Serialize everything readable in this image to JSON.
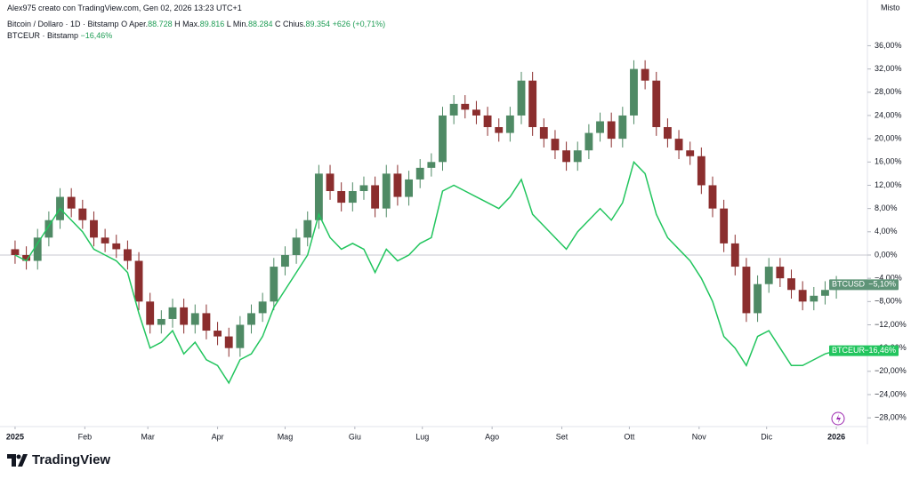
{
  "header": {
    "credit": "Alex975 creato con TradingView.com, Gen 02, 2026 13:23 UTC+1",
    "symbol": "Bitcoin / Dollaro · 1D · Bitstamp",
    "ohlc": [
      {
        "key": "O",
        "label": "Aper.",
        "value": "88.728"
      },
      {
        "key": "H",
        "label": "Max.",
        "value": "89.816"
      },
      {
        "key": "L",
        "label": "Min.",
        "value": "88.284"
      },
      {
        "key": "C",
        "label": "Chius.",
        "value": "89.354"
      }
    ],
    "change": "+626 (+0,71%)",
    "compare": "BTCEUR · Bitstamp",
    "compare_change": "−16,46%",
    "scale_mode": "Misto"
  },
  "logo": "TradingView",
  "chart_data": {
    "type": "candlestick",
    "x": [
      0,
      5,
      10,
      15,
      20,
      25,
      30,
      35,
      40,
      45,
      50,
      55,
      60,
      65,
      70,
      75,
      80,
      85,
      90,
      95,
      100,
      105,
      110,
      115,
      120,
      125,
      130,
      135,
      140,
      145,
      150,
      155,
      160,
      165,
      170,
      175,
      180,
      185,
      190,
      195,
      200,
      205,
      210,
      215,
      220,
      225,
      230,
      235,
      240,
      245,
      250,
      255,
      260,
      265,
      270,
      275,
      280,
      285,
      290,
      295,
      300,
      305,
      310,
      315,
      320,
      325,
      330,
      335,
      340,
      345,
      350,
      355,
      360,
      365
    ],
    "xlim": [
      -6.7,
      378.8
    ],
    "xticks": [
      {
        "value": 0,
        "label": "2025"
      },
      {
        "value": 31,
        "label": "Feb"
      },
      {
        "value": 59,
        "label": "Mar"
      },
      {
        "value": 90,
        "label": "Apr"
      },
      {
        "value": 120,
        "label": "Mag"
      },
      {
        "value": 151,
        "label": "Giu"
      },
      {
        "value": 181,
        "label": "Lug"
      },
      {
        "value": 212,
        "label": "Ago"
      },
      {
        "value": 243,
        "label": "Set"
      },
      {
        "value": 273,
        "label": "Ott"
      },
      {
        "value": 304,
        "label": "Nov"
      },
      {
        "value": 334,
        "label": "Dic"
      },
      {
        "value": 365,
        "label": "2026"
      }
    ],
    "ylim": [
      -29.5,
      40.5
    ],
    "yticks": [
      {
        "value": 36,
        "label": "36,00%"
      },
      {
        "value": 32,
        "label": "32,00%"
      },
      {
        "value": 28,
        "label": "28,00%"
      },
      {
        "value": 24,
        "label": "24,00%"
      },
      {
        "value": 20,
        "label": "20,00%"
      },
      {
        "value": 16,
        "label": "16,00%"
      },
      {
        "value": 12,
        "label": "12,00%"
      },
      {
        "value": 8,
        "label": "8,00%"
      },
      {
        "value": 4,
        "label": "4,00%"
      },
      {
        "value": 0,
        "label": "0,00%"
      },
      {
        "value": -4,
        "label": "−4,00%"
      },
      {
        "value": -8,
        "label": "−8,00%"
      },
      {
        "value": -12,
        "label": "−12,00%"
      },
      {
        "value": -16,
        "label": "−16,00%"
      },
      {
        "value": -20,
        "label": "−20,00%"
      },
      {
        "value": -24,
        "label": "−24,00%"
      },
      {
        "value": -28,
        "label": "−28,00%"
      }
    ],
    "grid": false,
    "zero_line": true,
    "series": [
      {
        "name": "BTCUSD",
        "kind": "candles",
        "up_color": "#4f8a65",
        "down_color": "#8b2e2e",
        "badge_color": "#5f9478",
        "badge": "−5,10%",
        "open": [
          1,
          0,
          -1,
          3,
          6,
          10,
          8,
          6,
          3,
          2,
          1,
          -1,
          -8,
          -12,
          -11,
          -9,
          -12,
          -10,
          -13,
          -14,
          -16,
          -12,
          -10,
          -8,
          -2,
          0,
          3,
          6,
          14,
          11,
          9,
          11,
          12,
          8,
          14,
          10,
          13,
          15,
          16,
          24,
          26,
          25,
          24,
          22,
          21,
          24,
          30,
          22,
          20,
          18,
          16,
          18,
          21,
          23,
          20,
          24,
          32,
          30,
          22,
          20,
          18,
          17,
          12,
          8,
          2,
          -2,
          -10,
          -5,
          -2,
          -4,
          -6,
          -8,
          -7,
          -6
        ],
        "high": [
          2.5,
          1.5,
          4.5,
          7.5,
          11.5,
          11.5,
          9.5,
          7.5,
          4.5,
          3.5,
          2.5,
          0.5,
          -6.5,
          -9.5,
          -7.5,
          -7.5,
          -8.5,
          -8.5,
          -11.5,
          -12.5,
          -10.5,
          -8.5,
          -6.5,
          -0.5,
          1.5,
          4.5,
          7.5,
          15.5,
          15.5,
          12.5,
          12.5,
          13.5,
          13.5,
          15.5,
          15.5,
          14.5,
          16.5,
          17.5,
          25.5,
          27.5,
          27.5,
          26.5,
          25.5,
          23.5,
          25.5,
          31.5,
          31.5,
          23.5,
          21.5,
          19.5,
          19.5,
          22.5,
          24.5,
          24.5,
          25.5,
          33.5,
          33.5,
          31.5,
          23.5,
          21.5,
          19.5,
          18.5,
          13.5,
          9.5,
          3.5,
          -0.5,
          -3.5,
          -0.5,
          -0.5,
          -2.5,
          -4.5,
          -5.5,
          -4.5,
          -3.6
        ],
        "low": [
          -1.5,
          -2.5,
          -2.5,
          1.5,
          4.5,
          6.5,
          4.5,
          1.5,
          0.5,
          -0.5,
          -2.5,
          -9.5,
          -13.5,
          -13.5,
          -12.5,
          -13.5,
          -13.5,
          -14.5,
          -15.5,
          -17.5,
          -17.5,
          -13.5,
          -11.5,
          -9.5,
          -3.5,
          -1.5,
          1.5,
          4.5,
          9.5,
          7.5,
          7.5,
          9.5,
          6.5,
          6.5,
          8.5,
          8.5,
          11.5,
          13.5,
          14.5,
          22.5,
          23.5,
          22.5,
          20.5,
          19.5,
          19.5,
          22.5,
          20.5,
          18.5,
          16.5,
          14.5,
          14.5,
          16.5,
          19.5,
          18.5,
          18.5,
          22.5,
          28.5,
          20.5,
          18.5,
          16.5,
          15.5,
          10.5,
          6.5,
          0.5,
          -3.5,
          -11.5,
          -11.5,
          -6.5,
          -5.5,
          -7.5,
          -9.5,
          -9.5,
          -8.5,
          -7.5
        ],
        "close": [
          0,
          -1,
          3,
          6,
          10,
          8,
          6,
          3,
          2,
          1,
          -1,
          -8,
          -12,
          -11,
          -9,
          -12,
          -10,
          -13,
          -14,
          -16,
          -12,
          -10,
          -8,
          -2,
          0,
          3,
          6,
          14,
          11,
          9,
          11,
          12,
          8,
          14,
          10,
          13,
          15,
          16,
          24,
          26,
          25,
          24,
          22,
          21,
          24,
          30,
          22,
          20,
          18,
          16,
          18,
          21,
          23,
          20,
          24,
          32,
          30,
          22,
          20,
          18,
          17,
          12,
          8,
          2,
          -2,
          -10,
          -5,
          -2,
          -4,
          -6,
          -8,
          -7,
          -6,
          -5.1
        ]
      },
      {
        "name": "BTCEUR",
        "kind": "line",
        "color": "#22c55e",
        "badge_color": "#22c55e",
        "badge": "−16,46%",
        "values": [
          0,
          -1,
          2,
          5,
          8,
          6,
          4,
          1,
          0,
          -1,
          -3,
          -10,
          -16,
          -15,
          -13,
          -17,
          -15,
          -18,
          -19,
          -22,
          -18,
          -17,
          -14,
          -9,
          -6,
          -3,
          0,
          7,
          3,
          1,
          2,
          1,
          -3,
          1,
          -1,
          0,
          2,
          3,
          11,
          12,
          11,
          10,
          9,
          8,
          10,
          13,
          7,
          5,
          3,
          1,
          4,
          6,
          8,
          6,
          9,
          16,
          14,
          7,
          3,
          1,
          -1,
          -4,
          -8,
          -14,
          -16,
          -19,
          -14,
          -13,
          -16,
          -19,
          -19,
          -18,
          -17,
          -16.46
        ]
      }
    ]
  }
}
